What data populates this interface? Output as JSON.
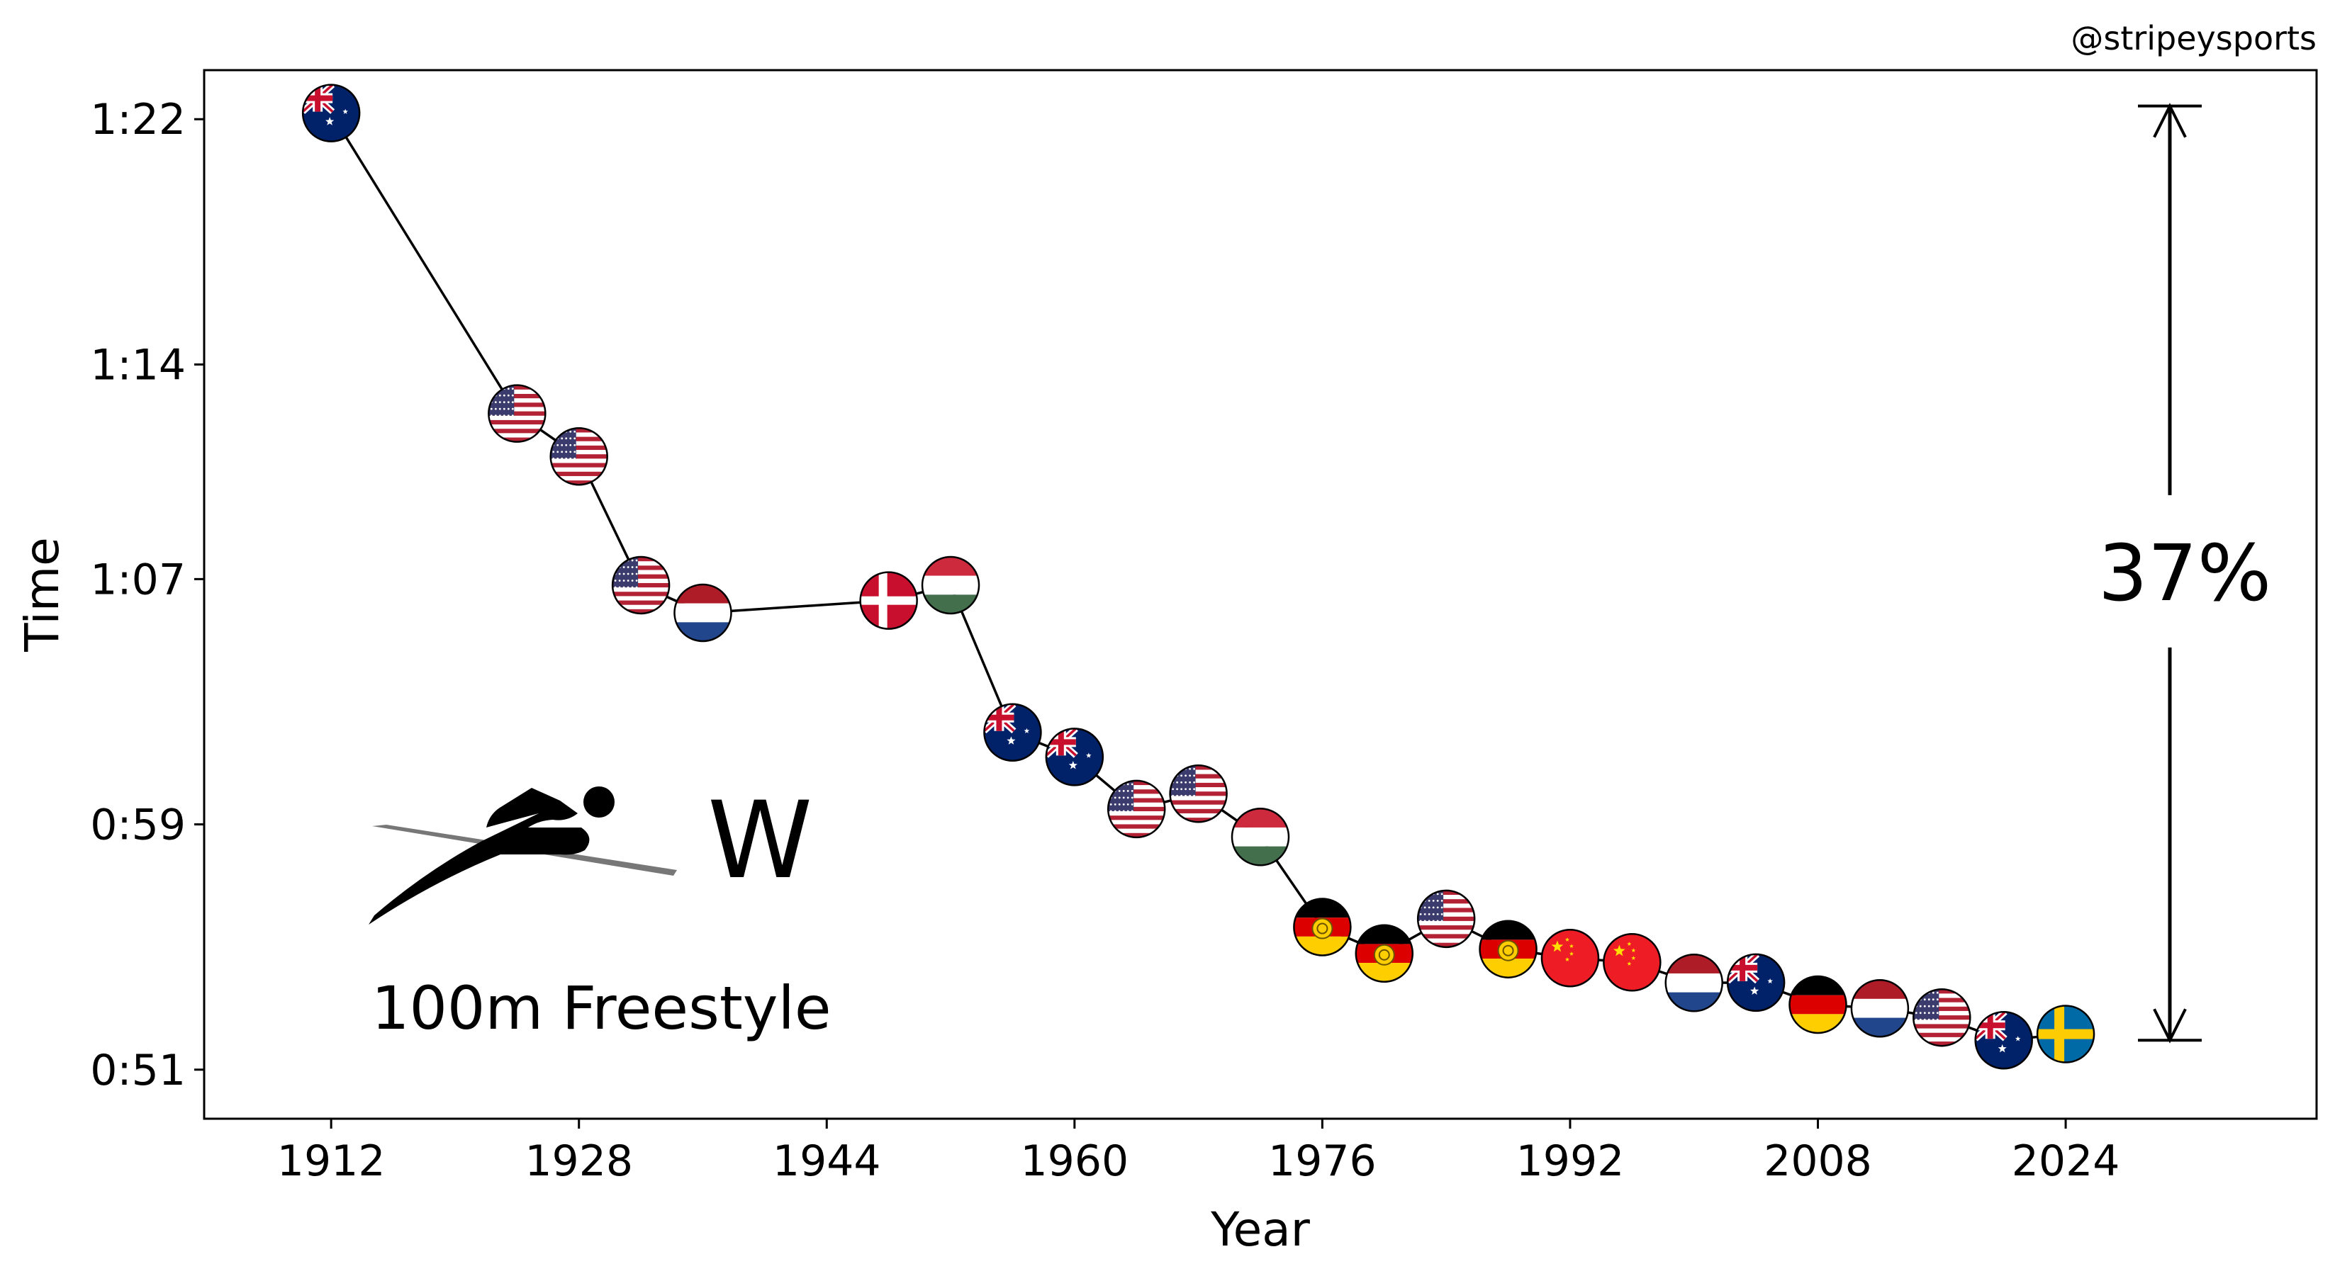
{
  "credit": "@stripeysports",
  "chart_data": {
    "type": "line",
    "xlabel": "Year",
    "ylabel": "Time",
    "x_ticks": [
      1912,
      1928,
      1944,
      1960,
      1976,
      1992,
      2008,
      2024
    ],
    "y_ticks": [
      {
        "seconds": 51,
        "label": "0:51"
      },
      {
        "seconds": 59,
        "label": "0:59"
      },
      {
        "seconds": 67,
        "label": "1:07"
      },
      {
        "seconds": 74,
        "label": "1:14"
      },
      {
        "seconds": 82,
        "label": "1:22"
      }
    ],
    "xlim": [
      1903.8,
      2040.2
    ],
    "ylim": [
      49.4,
      83.6
    ],
    "grid": false,
    "series": [
      {
        "points": [
          {
            "year": 1912,
            "time_s": 82.2,
            "country": "Australia"
          },
          {
            "year": 1924,
            "time_s": 72.4,
            "country": "USA"
          },
          {
            "year": 1928,
            "time_s": 71.0,
            "country": "USA"
          },
          {
            "year": 1932,
            "time_s": 66.8,
            "country": "USA"
          },
          {
            "year": 1936,
            "time_s": 65.9,
            "country": "Netherlands"
          },
          {
            "year": 1948,
            "time_s": 66.3,
            "country": "Denmark"
          },
          {
            "year": 1952,
            "time_s": 66.8,
            "country": "Hungary"
          },
          {
            "year": 1956,
            "time_s": 62.0,
            "country": "Australia"
          },
          {
            "year": 1960,
            "time_s": 61.2,
            "country": "Australia"
          },
          {
            "year": 1964,
            "time_s": 59.5,
            "country": "USA"
          },
          {
            "year": 1968,
            "time_s": 60.0,
            "country": "USA"
          },
          {
            "year": 1972,
            "time_s": 58.59,
            "country": "Hungary"
          },
          {
            "year": 1976,
            "time_s": 55.65,
            "country": "East Germany"
          },
          {
            "year": 1980,
            "time_s": 54.79,
            "country": "East Germany"
          },
          {
            "year": 1984,
            "time_s": 55.92,
            "country": "USA"
          },
          {
            "year": 1988,
            "time_s": 54.93,
            "country": "East Germany"
          },
          {
            "year": 1992,
            "time_s": 54.64,
            "country": "China"
          },
          {
            "year": 1996,
            "time_s": 54.5,
            "country": "China"
          },
          {
            "year": 2000,
            "time_s": 53.83,
            "country": "Netherlands"
          },
          {
            "year": 2004,
            "time_s": 53.84,
            "country": "Australia"
          },
          {
            "year": 2008,
            "time_s": 53.12,
            "country": "Germany"
          },
          {
            "year": 2012,
            "time_s": 53.0,
            "country": "Netherlands"
          },
          {
            "year": 2016,
            "time_s": 52.7,
            "country": "USA"
          },
          {
            "year": 2020,
            "time_s": 51.96,
            "country": "Australia"
          },
          {
            "year": 2024,
            "time_s": 52.16,
            "country": "Sweden"
          }
        ]
      }
    ],
    "annotation": {
      "label": "37%",
      "from_s": 51.96,
      "to_s": 82.2
    },
    "event_label": "100m Freestyle",
    "gender_label": "W"
  },
  "colors": {
    "line": "#000000",
    "australia_blue": "#012169",
    "usa_red": "#B22234",
    "dutch_red": "#AE1C28",
    "dutch_blue": "#21468B",
    "danish_red": "#C8102E",
    "hungary_red": "#CD2A3E",
    "hungary_green": "#436F4D",
    "gdr_gold": "#FFCE00",
    "gdr_red": "#DD0000",
    "china_red": "#EE1C25",
    "china_star": "#FFDE00",
    "sweden_blue": "#006AA7",
    "sweden_yellow": "#FECC02",
    "swimmer_gray": "#777777"
  },
  "icons": [
    "swimmer-icon",
    "double-arrow-icon"
  ]
}
